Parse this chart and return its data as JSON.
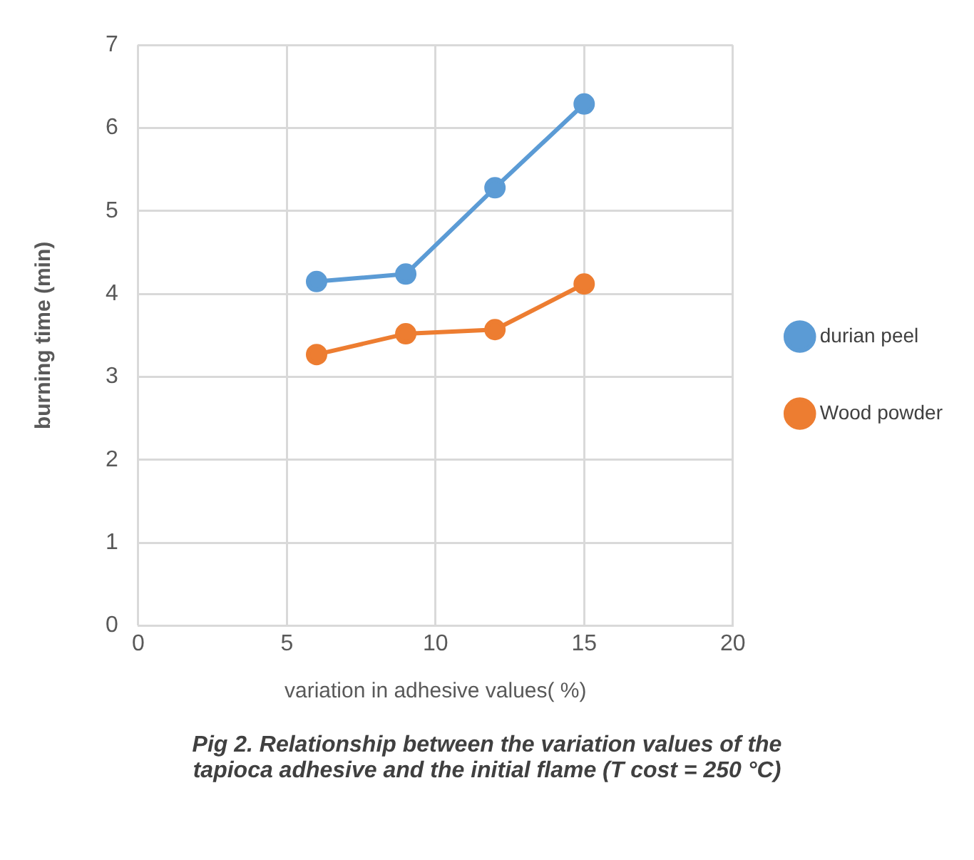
{
  "chart_data": {
    "type": "line",
    "title": "Pig 2.  Relationship between the variation values of the tapioca adhesive and the initial flame (T cost = 250 °C)",
    "xlabel": "variation in adhesive values( %)",
    "ylabel": "burning time (min)",
    "x": [
      6,
      9,
      12,
      15
    ],
    "series": [
      {
        "name": "durian peel",
        "color": "#5b9bd5",
        "values": [
          4.15,
          4.24,
          5.28,
          6.29
        ]
      },
      {
        "name": "Wood powder",
        "color": "#ed7d31",
        "values": [
          3.27,
          3.52,
          3.57,
          4.12
        ]
      }
    ],
    "xlim": [
      0,
      20
    ],
    "xticks": [
      0,
      5,
      10,
      15,
      20
    ],
    "ylim": [
      0,
      7
    ],
    "yticks": [
      0,
      1,
      2,
      3,
      4,
      5,
      6,
      7
    ],
    "grid": true,
    "legend": "right",
    "marker": "circle",
    "line_style": "solid"
  }
}
